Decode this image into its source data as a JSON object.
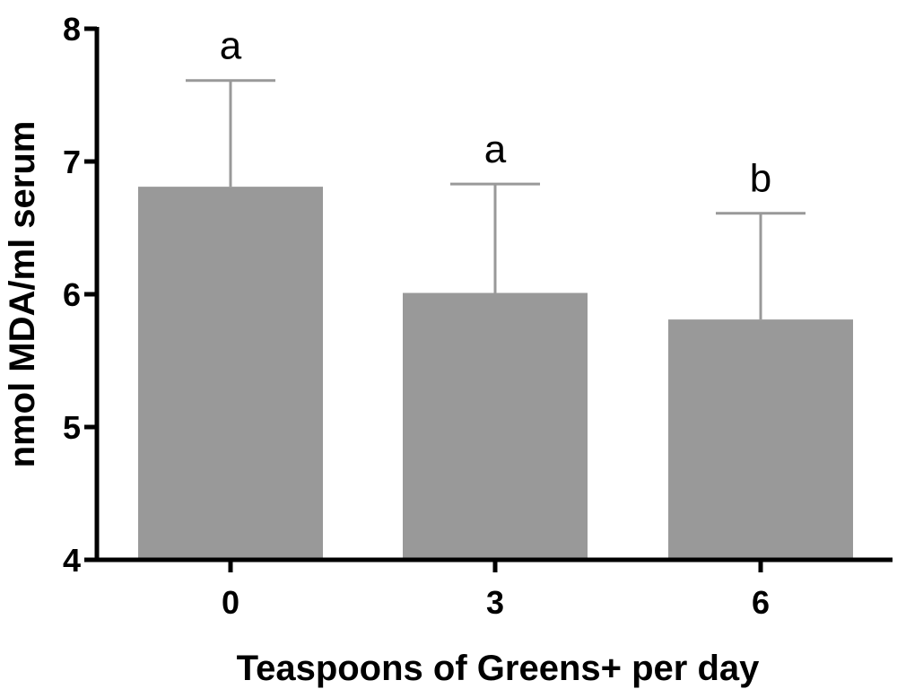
{
  "chart_data": {
    "type": "bar",
    "title": "",
    "xlabel": "Teaspoons of Greens+ per day",
    "ylabel": "nmol MDA/ml serum",
    "categories": [
      "0",
      "3",
      "6"
    ],
    "values": [
      6.81,
      6.01,
      5.81
    ],
    "error_upper": [
      0.8,
      0.82,
      0.8
    ],
    "significance_labels": [
      "a",
      "a",
      "b"
    ],
    "ylim": [
      4,
      8
    ],
    "yticks": [
      4,
      5,
      6,
      7,
      8
    ],
    "grid": false,
    "legend": "none",
    "bar_color": "#999999",
    "error_bar_color": "#999999",
    "axis_color": "#000000"
  }
}
